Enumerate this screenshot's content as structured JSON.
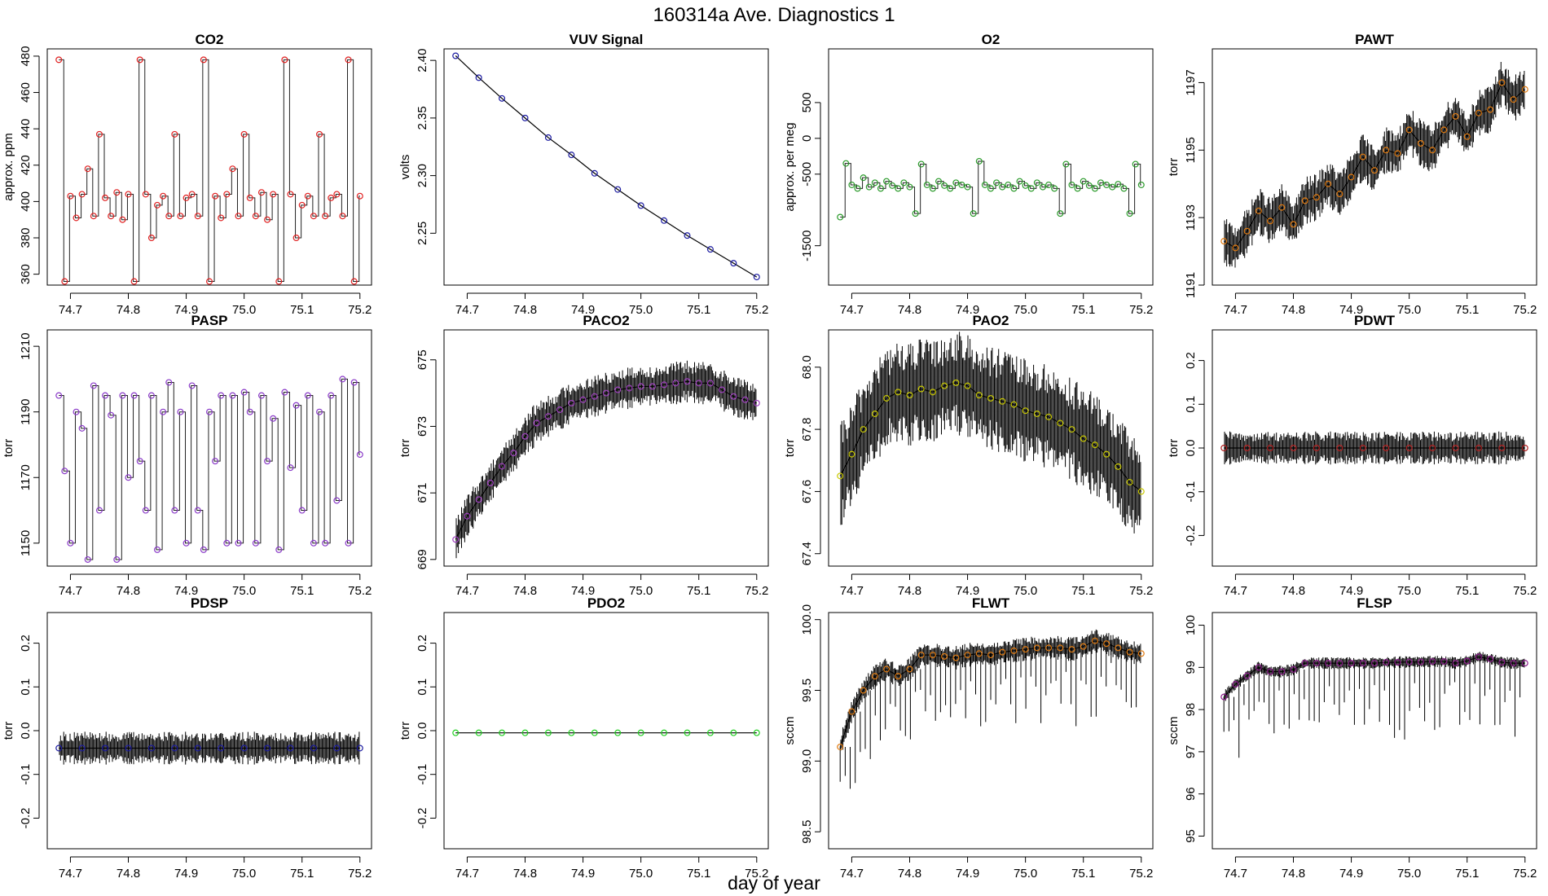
{
  "figure": {
    "title": "160314a   Ave. Diagnostics 1",
    "xlabel": "day of year"
  },
  "chart_data": [
    {
      "type": "line",
      "title": "CO2",
      "ylabel": "approx. ppm",
      "color": "#e02020",
      "xlim": [
        74.66,
        75.22
      ],
      "ylim": [
        354,
        484
      ],
      "xticks": [
        "74.7",
        "74.8",
        "74.9",
        "75.0",
        "75.1",
        "75.2"
      ],
      "yticks": [
        "360",
        "380",
        "400",
        "420",
        "440",
        "460",
        "480"
      ],
      "x": [
        74.68,
        74.69,
        74.7,
        74.71,
        74.72,
        74.73,
        74.74,
        74.75,
        74.76,
        74.77,
        74.78,
        74.79,
        74.8,
        74.81,
        74.82,
        74.83,
        74.84,
        74.85,
        74.86,
        74.87,
        74.88,
        74.89,
        74.9,
        74.91,
        74.92,
        74.93,
        74.94,
        74.95,
        74.96,
        74.97,
        74.98,
        74.99,
        75.0,
        75.01,
        75.02,
        75.03,
        75.04,
        75.05,
        75.06,
        75.07,
        75.08,
        75.09,
        75.1,
        75.11,
        75.12,
        75.13,
        75.14,
        75.15,
        75.16,
        75.17,
        75.18,
        75.19,
        75.2
      ],
      "values": [
        478,
        356,
        403,
        391,
        404,
        418,
        392,
        437,
        402,
        392,
        405,
        390,
        404,
        356,
        478,
        404,
        380,
        398,
        403,
        392,
        437,
        392,
        402,
        404,
        392,
        478,
        356,
        403,
        391,
        404,
        418,
        392,
        437,
        402,
        392,
        405,
        390,
        404,
        356,
        478,
        404,
        380,
        398,
        403,
        392,
        437,
        392,
        402,
        404,
        392,
        478,
        356,
        403
      ]
    },
    {
      "type": "line",
      "title": "VUV Signal",
      "ylabel": "volts",
      "color": "#1a1aa0",
      "xlim": [
        74.66,
        75.22
      ],
      "ylim": [
        2.205,
        2.41
      ],
      "xticks": [
        "74.7",
        "74.8",
        "74.9",
        "75.0",
        "75.1",
        "75.2"
      ],
      "yticks": [
        "2.25",
        "2.30",
        "2.35",
        "2.40"
      ],
      "x": [
        74.68,
        74.72,
        74.76,
        74.8,
        74.84,
        74.88,
        74.92,
        74.96,
        75.0,
        75.04,
        75.08,
        75.12,
        75.16,
        75.2
      ],
      "values": [
        2.404,
        2.385,
        2.367,
        2.35,
        2.333,
        2.318,
        2.302,
        2.288,
        2.274,
        2.261,
        2.248,
        2.236,
        2.224,
        2.212
      ]
    },
    {
      "type": "line",
      "title": "O2",
      "ylabel": "approx. per meg",
      "color": "#2a9a2a",
      "xlim": [
        74.66,
        75.22
      ],
      "ylim": [
        -2050,
        1250
      ],
      "xticks": [
        "74.7",
        "74.8",
        "74.9",
        "75.0",
        "75.1",
        "75.2"
      ],
      "yticks": [
        "-1500",
        "-500",
        "0",
        "500"
      ],
      "x": [
        74.68,
        74.69,
        74.7,
        74.71,
        74.72,
        74.73,
        74.74,
        74.75,
        74.76,
        74.77,
        74.78,
        74.79,
        74.8,
        74.81,
        74.82,
        74.83,
        74.84,
        74.85,
        74.86,
        74.87,
        74.88,
        74.89,
        74.9,
        74.91,
        74.92,
        74.93,
        74.94,
        74.95,
        74.96,
        74.97,
        74.98,
        74.99,
        75.0,
        75.01,
        75.02,
        75.03,
        75.04,
        75.05,
        75.06,
        75.07,
        75.08,
        75.09,
        75.1,
        75.11,
        75.12,
        75.13,
        75.14,
        75.15,
        75.16,
        75.17,
        75.18,
        75.19,
        75.2
      ],
      "values": [
        -1100,
        -350,
        -650,
        -700,
        -550,
        -680,
        -620,
        -700,
        -600,
        -660,
        -700,
        -620,
        -680,
        -1050,
        -360,
        -650,
        -700,
        -600,
        -660,
        -700,
        -620,
        -650,
        -680,
        -1050,
        -320,
        -650,
        -700,
        -620,
        -680,
        -650,
        -700,
        -600,
        -660,
        -700,
        -620,
        -680,
        -650,
        -700,
        -1050,
        -360,
        -650,
        -700,
        -600,
        -660,
        -700,
        -620,
        -650,
        -680,
        -640,
        -700,
        -1050,
        -360,
        -650
      ]
    },
    {
      "type": "line",
      "title": "PAWT",
      "ylabel": "torr",
      "color": "#e07a10",
      "xlim": [
        74.66,
        75.22
      ],
      "ylim": [
        1191,
        1198
      ],
      "xticks": [
        "74.7",
        "74.8",
        "74.9",
        "75.0",
        "75.1",
        "75.2"
      ],
      "yticks": [
        "1191",
        "1193",
        "1195",
        "1197"
      ],
      "x": [
        74.68,
        74.7,
        74.72,
        74.74,
        74.76,
        74.78,
        74.8,
        74.82,
        74.84,
        74.86,
        74.88,
        74.9,
        74.92,
        74.94,
        74.96,
        74.98,
        75.0,
        75.02,
        75.04,
        75.06,
        75.08,
        75.1,
        75.12,
        75.14,
        75.16,
        75.18,
        75.2
      ],
      "values": [
        1192.3,
        1192.1,
        1192.6,
        1193.2,
        1192.9,
        1193.3,
        1192.8,
        1193.5,
        1193.6,
        1194.0,
        1193.7,
        1194.2,
        1194.8,
        1194.4,
        1195.0,
        1194.9,
        1195.6,
        1195.2,
        1195.0,
        1195.6,
        1196.0,
        1195.4,
        1196.1,
        1196.2,
        1197.0,
        1196.5,
        1196.8
      ]
    },
    {
      "type": "line",
      "title": "PASP",
      "ylabel": "torr",
      "color": "#8a3ac8",
      "xlim": [
        74.66,
        75.22
      ],
      "ylim": [
        1143,
        1215
      ],
      "xticks": [
        "74.7",
        "74.8",
        "74.9",
        "75.0",
        "75.1",
        "75.2"
      ],
      "yticks": [
        "1150",
        "1170",
        "1190",
        "1210"
      ],
      "x": [
        74.68,
        74.69,
        74.7,
        74.71,
        74.72,
        74.73,
        74.74,
        74.75,
        74.76,
        74.77,
        74.78,
        74.79,
        74.8,
        74.81,
        74.82,
        74.83,
        74.84,
        74.85,
        74.86,
        74.87,
        74.88,
        74.89,
        74.9,
        74.91,
        74.92,
        74.93,
        74.94,
        74.95,
        74.96,
        74.97,
        74.98,
        74.99,
        75.0,
        75.01,
        75.02,
        75.03,
        75.04,
        75.05,
        75.06,
        75.07,
        75.08,
        75.09,
        75.1,
        75.11,
        75.12,
        75.13,
        75.14,
        75.15,
        75.16,
        75.17,
        75.18,
        75.19,
        75.2
      ],
      "values": [
        1195,
        1172,
        1150,
        1190,
        1185,
        1145,
        1198,
        1160,
        1195,
        1189,
        1145,
        1195,
        1170,
        1195,
        1175,
        1160,
        1195,
        1148,
        1190,
        1199,
        1160,
        1190,
        1150,
        1198,
        1160,
        1148,
        1190,
        1175,
        1195,
        1150,
        1195,
        1150,
        1196,
        1190,
        1150,
        1195,
        1175,
        1188,
        1148,
        1196,
        1173,
        1192,
        1160,
        1195,
        1150,
        1190,
        1150,
        1195,
        1163,
        1200,
        1150,
        1199,
        1177
      ]
    },
    {
      "type": "line",
      "title": "PACO2",
      "ylabel": "torr",
      "color": "#a040c0",
      "xlim": [
        74.66,
        75.22
      ],
      "ylim": [
        668.8,
        675.9
      ],
      "xticks": [
        "74.7",
        "74.8",
        "74.9",
        "75.0",
        "75.1",
        "75.2"
      ],
      "yticks": [
        "669",
        "671",
        "673",
        "675"
      ],
      "x": [
        74.68,
        74.7,
        74.72,
        74.74,
        74.76,
        74.78,
        74.8,
        74.82,
        74.84,
        74.86,
        74.88,
        74.9,
        74.92,
        74.94,
        74.96,
        74.98,
        75.0,
        75.02,
        75.04,
        75.06,
        75.08,
        75.1,
        75.12,
        75.14,
        75.16,
        75.18,
        75.2
      ],
      "values": [
        669.6,
        670.3,
        670.8,
        671.3,
        671.8,
        672.2,
        672.7,
        673.1,
        673.3,
        673.5,
        673.7,
        673.8,
        673.9,
        674.0,
        674.1,
        674.15,
        674.2,
        674.2,
        674.25,
        674.3,
        674.35,
        674.3,
        674.3,
        674.1,
        673.9,
        673.8,
        673.7
      ]
    },
    {
      "type": "line",
      "title": "PAO2",
      "ylabel": "torr",
      "color": "#c8c800",
      "xlim": [
        74.66,
        75.22
      ],
      "ylim": [
        67.36,
        68.12
      ],
      "xticks": [
        "74.7",
        "74.8",
        "74.9",
        "75.0",
        "75.1",
        "75.2"
      ],
      "yticks": [
        "67.4",
        "67.6",
        "67.8",
        "68.0"
      ],
      "x": [
        74.68,
        74.7,
        74.72,
        74.74,
        74.76,
        74.78,
        74.8,
        74.82,
        74.84,
        74.86,
        74.88,
        74.9,
        74.92,
        74.94,
        74.96,
        74.98,
        75.0,
        75.02,
        75.04,
        75.06,
        75.08,
        75.1,
        75.12,
        75.14,
        75.16,
        75.18,
        75.2
      ],
      "values": [
        67.65,
        67.72,
        67.8,
        67.85,
        67.9,
        67.92,
        67.91,
        67.93,
        67.92,
        67.94,
        67.95,
        67.94,
        67.91,
        67.9,
        67.89,
        67.88,
        67.86,
        67.85,
        67.84,
        67.82,
        67.8,
        67.77,
        67.75,
        67.72,
        67.68,
        67.63,
        67.6
      ]
    },
    {
      "type": "line",
      "title": "PDWT",
      "ylabel": "torr",
      "color": "#b02020",
      "xlim": [
        74.66,
        75.22
      ],
      "ylim": [
        -0.27,
        0.27
      ],
      "xticks": [
        "74.7",
        "74.8",
        "74.9",
        "75.0",
        "75.1",
        "75.2"
      ],
      "yticks": [
        "-0.2",
        "-0.1",
        "0.0",
        "0.1",
        "0.2"
      ],
      "x": [
        74.68,
        74.72,
        74.76,
        74.8,
        74.84,
        74.88,
        74.92,
        74.96,
        75.0,
        75.04,
        75.08,
        75.12,
        75.16,
        75.2
      ],
      "values": [
        0,
        0,
        0,
        0,
        0,
        0,
        0,
        0,
        0,
        0,
        0,
        0,
        0,
        0
      ]
    },
    {
      "type": "line",
      "title": "PDSP",
      "ylabel": "torr",
      "color": "#1a1aa0",
      "xlim": [
        74.66,
        75.22
      ],
      "ylim": [
        -0.27,
        0.27
      ],
      "xticks": [
        "74.7",
        "74.8",
        "74.9",
        "75.0",
        "75.1",
        "75.2"
      ],
      "yticks": [
        "-0.2",
        "-0.1",
        "0.0",
        "0.1",
        "0.2"
      ],
      "x": [
        74.68,
        74.72,
        74.76,
        74.8,
        74.84,
        74.88,
        74.92,
        74.96,
        75.0,
        75.04,
        75.08,
        75.12,
        75.16,
        75.2
      ],
      "values": [
        -0.04,
        -0.04,
        -0.04,
        -0.04,
        -0.04,
        -0.04,
        -0.04,
        -0.04,
        -0.04,
        -0.04,
        -0.04,
        -0.04,
        -0.04,
        -0.04
      ]
    },
    {
      "type": "line",
      "title": "PDO2",
      "ylabel": "torr",
      "color": "#20d020",
      "xlim": [
        74.66,
        75.22
      ],
      "ylim": [
        -0.27,
        0.27
      ],
      "xticks": [
        "74.7",
        "74.8",
        "74.9",
        "75.0",
        "75.1",
        "75.2"
      ],
      "yticks": [
        "-0.2",
        "-0.1",
        "0.0",
        "0.1",
        "0.2"
      ],
      "x": [
        74.68,
        74.72,
        74.76,
        74.8,
        74.84,
        74.88,
        74.92,
        74.96,
        75.0,
        75.04,
        75.08,
        75.12,
        75.16,
        75.2
      ],
      "values": [
        -0.005,
        -0.005,
        -0.005,
        -0.005,
        -0.005,
        -0.005,
        -0.005,
        -0.005,
        -0.005,
        -0.005,
        -0.005,
        -0.005,
        -0.005,
        -0.005
      ]
    },
    {
      "type": "line",
      "title": "FLWT",
      "ylabel": "sccm",
      "color": "#e07a10",
      "xlim": [
        74.66,
        75.22
      ],
      "ylim": [
        98.38,
        100.05
      ],
      "xticks": [
        "74.7",
        "74.8",
        "74.9",
        "75.0",
        "75.1",
        "75.2"
      ],
      "yticks": [
        "98.5",
        "99.0",
        "99.5",
        "100.0"
      ],
      "x": [
        74.68,
        74.7,
        74.72,
        74.74,
        74.76,
        74.78,
        74.8,
        74.82,
        74.84,
        74.86,
        74.88,
        74.9,
        74.92,
        74.94,
        74.96,
        74.98,
        75.0,
        75.02,
        75.04,
        75.06,
        75.08,
        75.1,
        75.12,
        75.14,
        75.16,
        75.18,
        75.2
      ],
      "values": [
        99.1,
        99.35,
        99.5,
        99.6,
        99.65,
        99.6,
        99.65,
        99.75,
        99.75,
        99.74,
        99.73,
        99.75,
        99.76,
        99.75,
        99.77,
        99.78,
        99.79,
        99.8,
        99.8,
        99.8,
        99.79,
        99.81,
        99.85,
        99.83,
        99.8,
        99.77,
        99.76
      ]
    },
    {
      "type": "line",
      "title": "FLSP",
      "ylabel": "sccm",
      "color": "#8a1a8a",
      "xlim": [
        74.66,
        75.22
      ],
      "ylim": [
        94.7,
        100.3
      ],
      "xticks": [
        "74.7",
        "74.8",
        "74.9",
        "75.0",
        "75.1",
        "75.2"
      ],
      "yticks": [
        "95",
        "96",
        "97",
        "98",
        "99",
        "100"
      ],
      "x": [
        74.68,
        74.7,
        74.72,
        74.74,
        74.76,
        74.78,
        74.8,
        74.82,
        74.84,
        74.86,
        74.88,
        74.9,
        74.92,
        74.94,
        74.96,
        74.98,
        75.0,
        75.02,
        75.04,
        75.06,
        75.08,
        75.1,
        75.12,
        75.14,
        75.16,
        75.18,
        75.2
      ],
      "values": [
        98.3,
        98.6,
        98.8,
        99.0,
        98.9,
        98.9,
        98.95,
        99.1,
        99.1,
        99.1,
        99.1,
        99.1,
        99.1,
        99.1,
        99.12,
        99.12,
        99.13,
        99.13,
        99.14,
        99.14,
        99.1,
        99.15,
        99.25,
        99.2,
        99.12,
        99.1,
        99.1
      ]
    }
  ]
}
